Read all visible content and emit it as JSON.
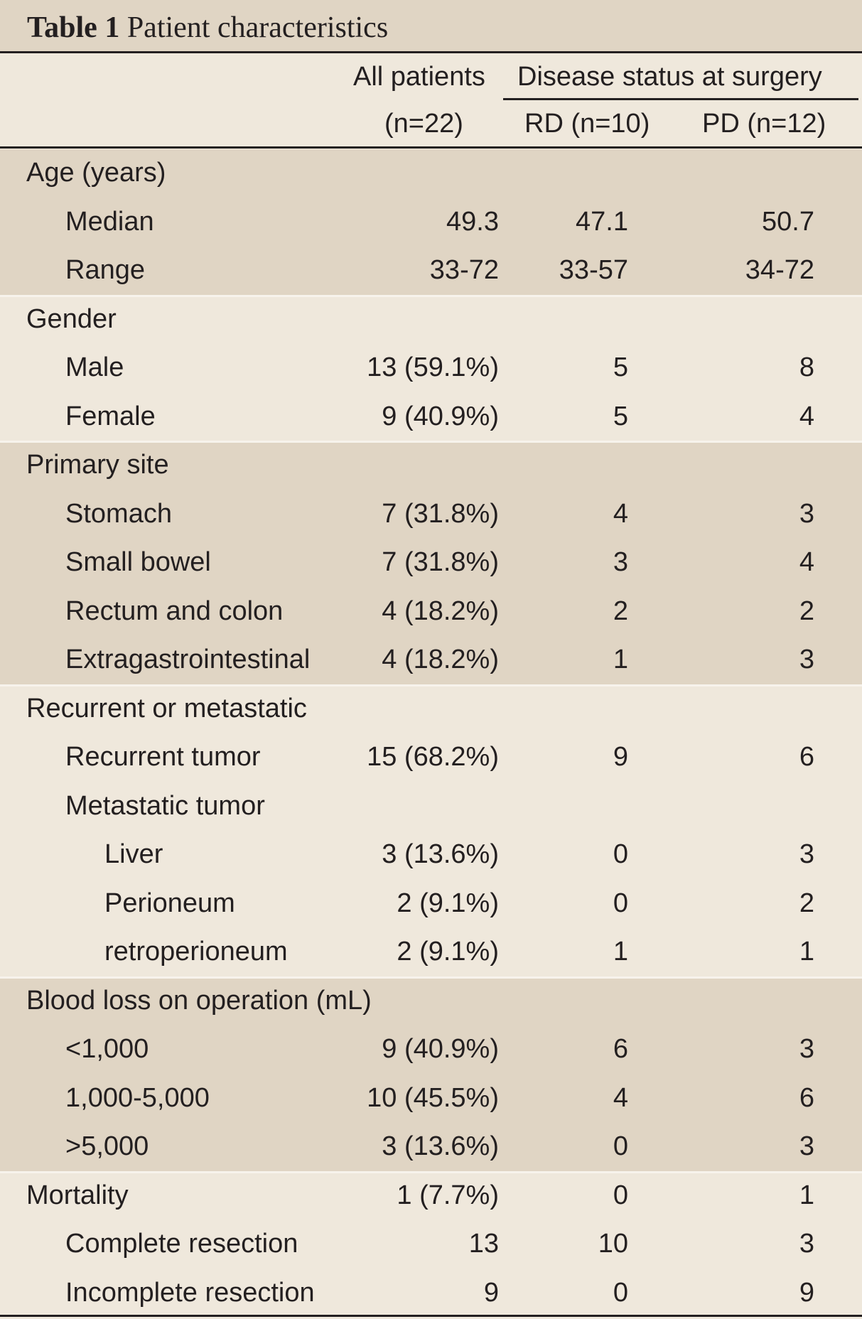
{
  "caption": {
    "label": "Table 1",
    "title": "Patient characteristics"
  },
  "header": {
    "all_patients": "All patients",
    "all_patients_n": "(n=22)",
    "group_title": "Disease status at surgery",
    "rd": "RD (n=10)",
    "pd": "PD (n=12)"
  },
  "rows": [
    {
      "label": "Age (years)",
      "indent": 0,
      "all": "",
      "rd": "",
      "pd": ""
    },
    {
      "label": "Median",
      "indent": 1,
      "all": "49.3",
      "rd": "47.1",
      "pd": "50.7"
    },
    {
      "label": "Range",
      "indent": 1,
      "all": "33-72",
      "rd": "33-57",
      "pd": "34-72"
    },
    {
      "label": "Gender",
      "indent": 0,
      "all": "",
      "rd": "",
      "pd": ""
    },
    {
      "label": "Male",
      "indent": 1,
      "all": "13 (59.1%)",
      "rd": "5",
      "pd": "8"
    },
    {
      "label": "Female",
      "indent": 1,
      "all": "9 (40.9%)",
      "rd": "5",
      "pd": "4"
    },
    {
      "label": "Primary site",
      "indent": 0,
      "all": "",
      "rd": "",
      "pd": ""
    },
    {
      "label": "Stomach",
      "indent": 1,
      "all": "7 (31.8%)",
      "rd": "4",
      "pd": "3"
    },
    {
      "label": "Small bowel",
      "indent": 1,
      "all": "7 (31.8%)",
      "rd": "3",
      "pd": "4"
    },
    {
      "label": "Rectum and colon",
      "indent": 1,
      "all": "4 (18.2%)",
      "rd": "2",
      "pd": "2"
    },
    {
      "label": "Extragastrointestinal",
      "indent": 1,
      "all": "4 (18.2%)",
      "rd": "1",
      "pd": "3"
    },
    {
      "label": "Recurrent or metastatic",
      "indent": 0,
      "all": "",
      "rd": "",
      "pd": ""
    },
    {
      "label": "Recurrent tumor",
      "indent": 1,
      "all": "15 (68.2%)",
      "rd": "9",
      "pd": "6"
    },
    {
      "label": "Metastatic tumor",
      "indent": 1,
      "all": "",
      "rd": "",
      "pd": ""
    },
    {
      "label": "Liver",
      "indent": 2,
      "all": "3 (13.6%)",
      "rd": "0",
      "pd": "3"
    },
    {
      "label": "Perioneum",
      "indent": 2,
      "all": "2 (9.1%)",
      "rd": "0",
      "pd": "2"
    },
    {
      "label": "retroperioneum",
      "indent": 2,
      "all": "2 (9.1%)",
      "rd": "1",
      "pd": "1"
    },
    {
      "label": "Blood loss on operation (mL)",
      "indent": 0,
      "all": "",
      "rd": "",
      "pd": ""
    },
    {
      "label": "<1,000",
      "indent": 1,
      "all": "9 (40.9%)",
      "rd": "6",
      "pd": "3"
    },
    {
      "label": "1,000-5,000",
      "indent": 1,
      "all": "10 (45.5%)",
      "rd": "4",
      "pd": "6"
    },
    {
      "label": ">5,000",
      "indent": 1,
      "all": "3 (13.6%)",
      "rd": "0",
      "pd": "3"
    },
    {
      "label": "Mortality",
      "indent": 0,
      "all": "1 (7.7%)",
      "rd": "0",
      "pd": "1"
    },
    {
      "label": "Complete resection",
      "indent": 1,
      "all": "13",
      "rd": "10",
      "pd": "3"
    },
    {
      "label": "Incomplete resection",
      "indent": 1,
      "all": "9",
      "rd": "0",
      "pd": "9"
    }
  ]
}
